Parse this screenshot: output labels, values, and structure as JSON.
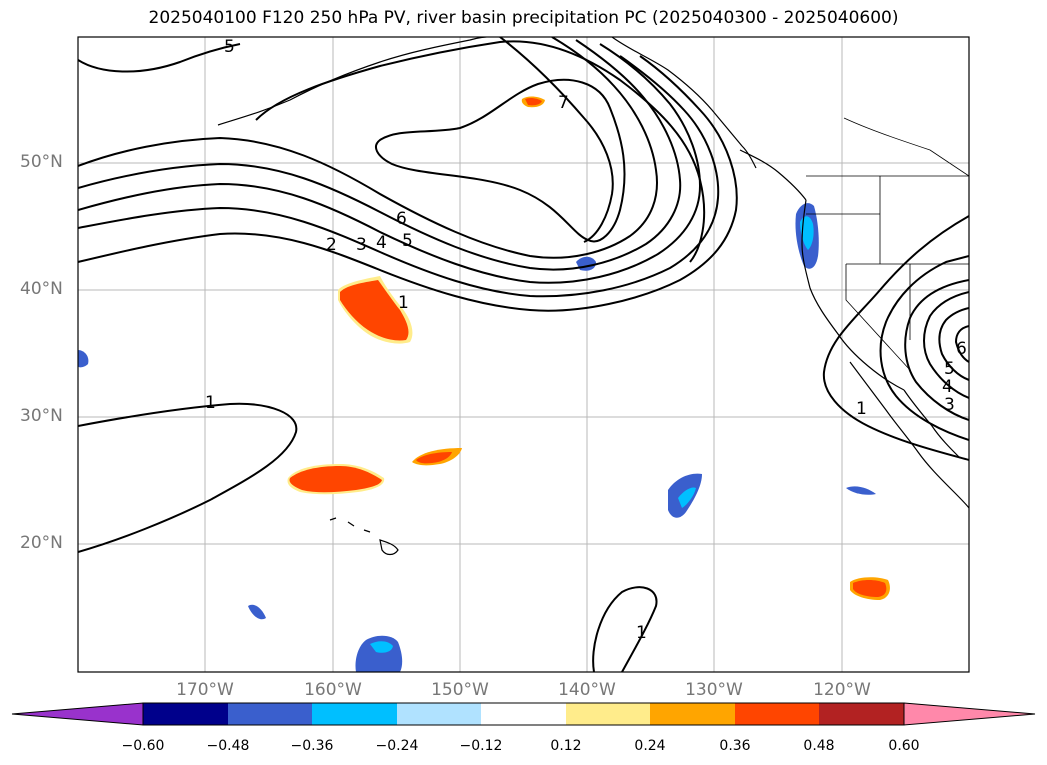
{
  "title": "2025040100 F120 250 hPa PV, river basin precipitation PC (2025040300 - 2025040600)",
  "map": {
    "projection": "plate-carree",
    "lon_range": [
      -180,
      -110
    ],
    "lat_range": [
      10,
      60
    ],
    "gridlines": true,
    "lat_labels": [
      "50°N",
      "40°N",
      "30°N",
      "20°N"
    ],
    "lon_labels": [
      "170°W",
      "160°W",
      "150°W",
      "140°W",
      "130°W",
      "120°W"
    ],
    "pv_contour_labels": [
      "1",
      "2",
      "3",
      "4",
      "5",
      "6",
      "7",
      "1",
      "3",
      "4",
      "5",
      "6",
      "1",
      "1",
      "5"
    ]
  },
  "colorbar": {
    "ticks": [
      "−0.60",
      "−0.48",
      "−0.36",
      "−0.24",
      "−0.12",
      "0.12",
      "0.24",
      "0.36",
      "0.48",
      "0.60"
    ],
    "colors": [
      "#9932cc",
      "#00008b",
      "#3a5fcd",
      "#00bfff",
      "#b0e2ff",
      "#ffffff",
      "#ffec8b",
      "#ffa500",
      "#ff4500",
      "#b22222",
      "#ff88aa",
      "#ff88aa"
    ],
    "extend": "both"
  }
}
